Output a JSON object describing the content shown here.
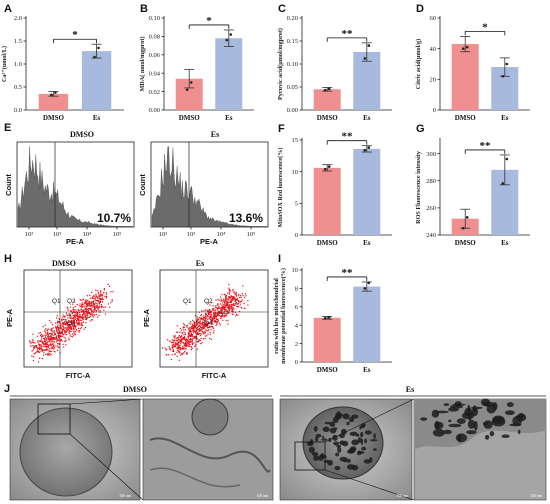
{
  "colors": {
    "dmso": "#f08f8f",
    "es": "#a7b9dc",
    "dot": "#222222",
    "hist": "#6b6b6b",
    "scatter": "#e8131b"
  },
  "chart_data": [
    {
      "panel": "A",
      "type": "bar",
      "categories": [
        "DMSO",
        "Es"
      ],
      "values": [
        0.35,
        1.28
      ],
      "errors": [
        0.05,
        0.15
      ],
      "points": [
        [
          0.33,
          0.38
        ],
        [
          1.15,
          1.35
        ]
      ],
      "ylabel": "Ca²⁺(umol/L)",
      "ylim": [
        0,
        2.0
      ],
      "yticks": [
        "0.0",
        "0.5",
        "1.0",
        "1.5",
        "2.0"
      ],
      "yvals": [
        0,
        0.5,
        1.0,
        1.5,
        2.0
      ],
      "significance": "*"
    },
    {
      "panel": "B",
      "type": "bar",
      "categories": [
        "DMSO",
        "Es"
      ],
      "values": [
        0.034,
        0.078
      ],
      "errors": [
        0.01,
        0.009
      ],
      "points": [
        [
          0.022,
          0.03
        ],
        [
          0.076,
          0.082
        ]
      ],
      "ylabel": "MDA( nmol/mgprot)",
      "ylim": [
        0,
        0.1
      ],
      "yticks": [
        "0.00",
        "0.02",
        "0.04",
        "0.06",
        "0.08",
        "0.10"
      ],
      "yvals": [
        0,
        0.02,
        0.04,
        0.06,
        0.08,
        0.1
      ],
      "significance": "*"
    },
    {
      "panel": "C",
      "type": "bar",
      "categories": [
        "DMSO",
        "Es"
      ],
      "values": [
        0.045,
        0.126
      ],
      "errors": [
        0.004,
        0.02
      ],
      "points": [
        [
          0.043,
          0.046
        ],
        [
          0.112,
          0.14
        ]
      ],
      "ylabel": "Pyruvic acid(μmol/mgprot)",
      "ylim": [
        0,
        0.2
      ],
      "yticks": [
        "0.00",
        "0.05",
        "0.10",
        "0.15",
        "0.20"
      ],
      "yvals": [
        0,
        0.05,
        0.1,
        0.15,
        0.2
      ],
      "significance": "**"
    },
    {
      "panel": "D",
      "type": "bar",
      "categories": [
        "DMSO",
        "Es"
      ],
      "values": [
        43,
        28
      ],
      "errors": [
        5,
        6
      ],
      "points": [
        [
          40,
          41
        ],
        [
          22,
          30
        ]
      ],
      "ylabel": "Citric acid(μmol/g)",
      "ylim": [
        0,
        60
      ],
      "yticks": [
        "0",
        "20",
        "40",
        "60"
      ],
      "yvals": [
        0,
        20,
        40,
        60
      ],
      "significance": "*"
    },
    {
      "panel": "F",
      "type": "bar",
      "categories": [
        "DMSO",
        "Es"
      ],
      "values": [
        10.6,
        13.6
      ],
      "errors": [
        0.5,
        0.5
      ],
      "points": [
        [
          10.4,
          10.8
        ],
        [
          13.4,
          13.8
        ]
      ],
      "ylabel": "MitoSOX Red luorescence(%)",
      "ylim": [
        0,
        15
      ],
      "yticks": [
        "0",
        "5",
        "10",
        "15"
      ],
      "yvals": [
        0,
        5,
        10,
        15
      ],
      "significance": "**"
    },
    {
      "panel": "G",
      "type": "bar",
      "categories": [
        "DMSO",
        "Es"
      ],
      "values": [
        252,
        288
      ],
      "errors": [
        7,
        11
      ],
      "points": [
        [
          245,
          253
        ],
        [
          278,
          296
        ]
      ],
      "ylabel": "ROS Fluorescence intensity",
      "ylim": [
        240,
        310
      ],
      "yticks": [
        "240",
        "260",
        "280",
        "300"
      ],
      "yvals": [
        240,
        260,
        280,
        300
      ],
      "significance": "**"
    },
    {
      "panel": "I",
      "type": "bar",
      "categories": [
        "DMSO",
        "Es"
      ],
      "values": [
        4.8,
        8.2
      ],
      "errors": [
        0.15,
        0.5
      ],
      "points": [
        [
          4.75,
          4.85
        ],
        [
          8.0,
          8.6
        ]
      ],
      "ylabel": "ratio with low mitochondrial membrane potential luorescence(%)",
      "ylim": [
        0,
        10
      ],
      "yticks": [
        "0",
        "2",
        "4",
        "6",
        "8",
        "10"
      ],
      "yvals": [
        0,
        2,
        4,
        6,
        8,
        10
      ],
      "significance": "**"
    }
  ],
  "flow_histograms": {
    "panel": "E",
    "left_title": "DMSO",
    "right_title": "Es",
    "left_percent": "10.7%",
    "right_percent": "13.6%",
    "xlabel": "PE-A",
    "ylabel": "Count",
    "xticks": [
      "10²",
      "10³",
      "10⁴",
      "10⁵"
    ]
  },
  "flow_scatter": {
    "panel": "H",
    "left_title": "DMSO",
    "right_title": "Es",
    "xlabel": "FITC-A",
    "ylabel": "PE-A",
    "quadrants": [
      "Q1",
      "Q2",
      "Q4"
    ]
  },
  "micrographs": {
    "panel": "J",
    "left_title": "DMSO",
    "right_title": "Es",
    "scale_bars": [
      "500 nm",
      "100 nm",
      "500 nm",
      "100 nm"
    ]
  }
}
